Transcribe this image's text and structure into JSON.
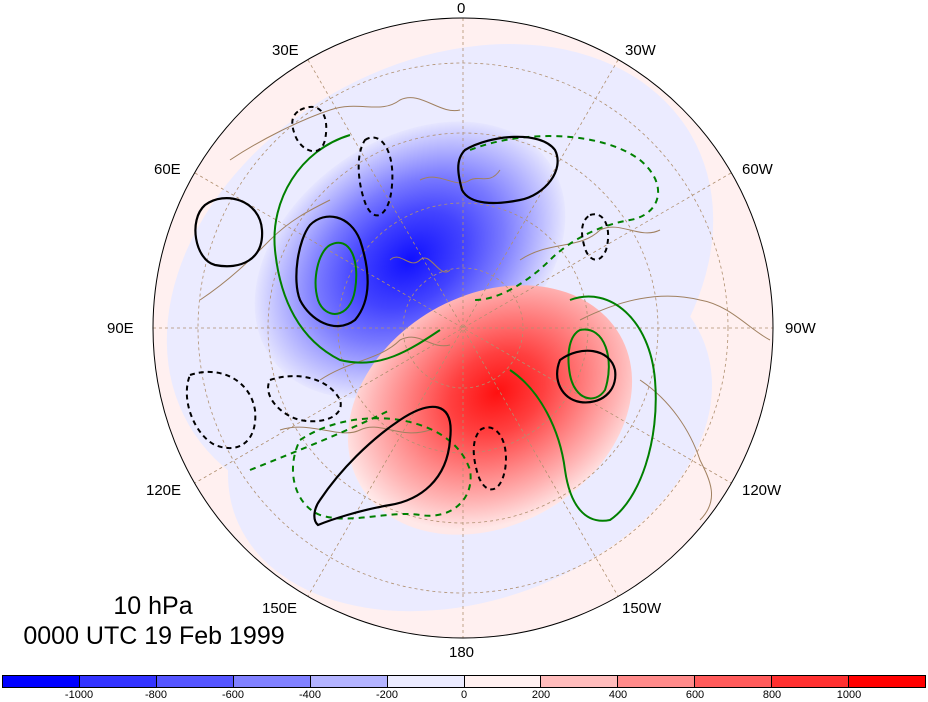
{
  "map": {
    "projection": "north-polar-stereographic",
    "longitude_labels": [
      {
        "id": "lon-0",
        "text": "0"
      },
      {
        "id": "lon-30w",
        "text": "30W"
      },
      {
        "id": "lon-60w",
        "text": "60W"
      },
      {
        "id": "lon-90w",
        "text": "90W"
      },
      {
        "id": "lon-120w",
        "text": "120W"
      },
      {
        "id": "lon-150w",
        "text": "150W"
      },
      {
        "id": "lon-180",
        "text": "180"
      },
      {
        "id": "lon-150e",
        "text": "150E"
      },
      {
        "id": "lon-120e",
        "text": "120E"
      },
      {
        "id": "lon-90e",
        "text": "90E"
      },
      {
        "id": "lon-60e",
        "text": "60E"
      },
      {
        "id": "lon-30e",
        "text": "30E"
      }
    ],
    "colors": {
      "coastline": "#a08060",
      "graticule": "#b09070",
      "contour_black": "#000000",
      "contour_green": "#008000"
    }
  },
  "title": {
    "line1": "10 hPa",
    "line2": "0000 UTC 19 Feb 1999"
  },
  "colorbar": {
    "colors": [
      "#0000ff",
      "#3333ff",
      "#5555ff",
      "#8080ff",
      "#b3b3ff",
      "#ebebff",
      "#fff0f0",
      "#ffbcbc",
      "#ff8a8a",
      "#ff5a5a",
      "#ff3030",
      "#ff0000"
    ],
    "labels": [
      "-1000",
      "-800",
      "-600",
      "-400",
      "-200",
      "0",
      "200",
      "400",
      "600",
      "800",
      "1000"
    ]
  }
}
